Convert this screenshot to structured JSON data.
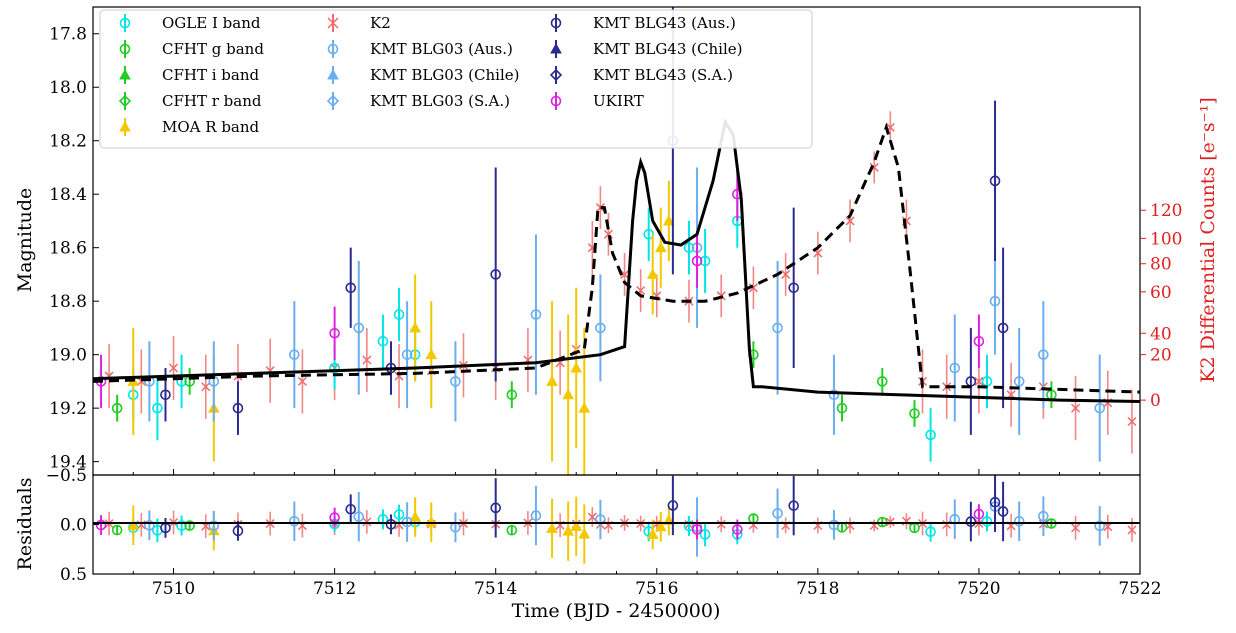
{
  "chart_data": {
    "type": "scatter",
    "xlabel": "Time (BJD - 2450000)",
    "ylabel": "Magnitude",
    "ylabel_residuals": "Residuals",
    "ylabel_right": "K2 Differential Counts [e⁻s⁻¹]",
    "xlim": [
      7509.0,
      7522.0
    ],
    "ylim_main": [
      17.7,
      19.45
    ],
    "ylim_residuals": [
      -0.5,
      0.5
    ],
    "x_ticks": [
      7510,
      7512,
      7514,
      7516,
      7518,
      7520,
      7522
    ],
    "x_tick_labels": [
      "7510",
      "7512",
      "7514",
      "7516",
      "7518",
      "7520",
      "7522"
    ],
    "y_ticks_main": [
      17.8,
      18.0,
      18.2,
      18.4,
      18.6,
      18.8,
      19.0,
      19.2,
      19.4
    ],
    "y_tick_labels_main": [
      "17.8",
      "18.0",
      "18.2",
      "18.4",
      "18.6",
      "18.8",
      "19.0",
      "19.2",
      "19.4"
    ],
    "y_ticks_residuals": [
      -0.5,
      0.0,
      0.5
    ],
    "y_tick_labels_residuals": [
      "−0.5",
      "0.0",
      "0.5"
    ],
    "right_ticks": [
      0,
      20,
      40,
      60,
      80,
      100,
      120
    ],
    "right_tick_labels": [
      "0",
      "20",
      "40",
      "60",
      "80",
      "100",
      "120"
    ],
    "right_tick_mags": [
      19.17,
      19.0,
      18.92,
      18.765,
      18.66,
      18.565,
      18.46
    ],
    "legend_position": "top-left",
    "legend": [
      {
        "label": "OGLE I band",
        "color": "#00e5e5",
        "marker": "o"
      },
      {
        "label": "CFHT g band",
        "color": "#22cc22",
        "marker": "o"
      },
      {
        "label": "CFHT i band",
        "color": "#22cc22",
        "marker": "^"
      },
      {
        "label": "CFHT r band",
        "color": "#22cc22",
        "marker": "D"
      },
      {
        "label": "MOA R band",
        "color": "#f2c800",
        "marker": "^"
      },
      {
        "label": "K2",
        "color": "#f06a6a",
        "marker": "x"
      },
      {
        "label": "KMT BLG03 (Aus.)",
        "color": "#6aaef0",
        "marker": "o"
      },
      {
        "label": "KMT BLG03 (Chile)",
        "color": "#6aaef0",
        "marker": "^"
      },
      {
        "label": "KMT BLG03 (S.A.)",
        "color": "#6aaef0",
        "marker": "D"
      },
      {
        "label": "KMT BLG43 (Aus.)",
        "color": "#2a2a90",
        "marker": "o"
      },
      {
        "label": "KMT BLG43 (Chile)",
        "color": "#2a2a90",
        "marker": "^"
      },
      {
        "label": "KMT BLG43 (S.A.)",
        "color": "#2a2a90",
        "marker": "D"
      },
      {
        "label": "UKIRT",
        "color": "#e020e0",
        "marker": "o"
      }
    ],
    "models": [
      {
        "style": "solid",
        "color": "#000000",
        "x": [
          7509.0,
          7511.0,
          7513.0,
          7514.5,
          7515.3,
          7515.6,
          7515.7,
          7515.75,
          7515.8,
          7515.85,
          7515.95,
          7516.1,
          7516.3,
          7516.5,
          7516.7,
          7516.85,
          7516.95,
          7517.05,
          7517.15,
          7517.2,
          7517.3,
          7518.0,
          7519.0,
          7520.0,
          7521.0,
          7522.0
        ],
        "y": [
          19.09,
          19.07,
          19.05,
          19.03,
          19.0,
          18.97,
          18.5,
          18.35,
          18.28,
          18.32,
          18.5,
          18.58,
          18.59,
          18.55,
          18.35,
          18.13,
          18.18,
          18.42,
          18.98,
          19.12,
          19.12,
          19.14,
          19.15,
          19.16,
          19.17,
          19.175
        ]
      },
      {
        "style": "dashed",
        "color": "#000000",
        "x": [
          7509.0,
          7511.0,
          7513.0,
          7514.5,
          7515.1,
          7515.2,
          7515.27,
          7515.35,
          7515.45,
          7515.6,
          7515.8,
          7516.2,
          7516.6,
          7517.0,
          7517.5,
          7518.0,
          7518.4,
          7518.7,
          7518.85,
          7519.0,
          7519.15,
          7519.3,
          7520.0,
          7521.0,
          7522.0
        ],
        "y": [
          19.1,
          19.08,
          19.07,
          19.05,
          18.98,
          18.75,
          18.45,
          18.45,
          18.62,
          18.73,
          18.78,
          18.8,
          18.8,
          18.77,
          18.7,
          18.6,
          18.48,
          18.28,
          18.15,
          18.3,
          18.7,
          19.12,
          19.12,
          19.13,
          19.14
        ]
      }
    ],
    "series": [
      {
        "name": "K2",
        "color": "#f06a6a",
        "marker": "x",
        "x": [
          7509.2,
          7509.6,
          7510.0,
          7510.4,
          7510.8,
          7511.2,
          7511.6,
          7512.0,
          7512.4,
          7512.8,
          7513.2,
          7513.6,
          7514.0,
          7514.4,
          7514.8,
          7515.0,
          7515.2,
          7515.3,
          7515.4,
          7515.6,
          7515.8,
          7516.0,
          7516.4,
          7516.8,
          7517.2,
          7517.6,
          7518.0,
          7518.4,
          7518.7,
          7518.9,
          7519.1,
          7519.3,
          7519.6,
          7520.0,
          7520.4,
          7520.8,
          7521.2,
          7521.6,
          7521.9
        ],
        "y": [
          19.08,
          19.1,
          19.05,
          19.12,
          19.08,
          19.06,
          19.1,
          19.05,
          19.02,
          19.08,
          19.06,
          19.04,
          19.05,
          19.02,
          19.03,
          18.98,
          18.6,
          18.45,
          18.55,
          18.7,
          18.76,
          18.78,
          18.8,
          18.78,
          18.75,
          18.7,
          18.62,
          18.5,
          18.3,
          18.15,
          18.5,
          19.1,
          19.12,
          19.1,
          19.15,
          19.12,
          19.2,
          19.18,
          19.25
        ],
        "err": [
          0.12,
          0.12,
          0.12,
          0.12,
          0.12,
          0.12,
          0.12,
          0.12,
          0.12,
          0.12,
          0.12,
          0.12,
          0.12,
          0.12,
          0.12,
          0.12,
          0.1,
          0.08,
          0.08,
          0.08,
          0.08,
          0.08,
          0.08,
          0.08,
          0.08,
          0.08,
          0.08,
          0.08,
          0.06,
          0.06,
          0.08,
          0.12,
          0.12,
          0.12,
          0.12,
          0.12,
          0.12,
          0.12,
          0.12
        ]
      },
      {
        "name": "OGLE I band",
        "color": "#00e5e5",
        "marker": "o",
        "x": [
          7509.5,
          7509.8,
          7510.1,
          7512.0,
          7512.6,
          7512.8,
          7513.0,
          7515.9,
          7516.4,
          7516.6,
          7517.0,
          7519.4,
          7520.1
        ],
        "y": [
          19.15,
          19.2,
          19.1,
          19.05,
          18.95,
          18.85,
          19.0,
          18.55,
          18.6,
          18.65,
          18.5,
          19.3,
          19.1
        ],
        "err": [
          0.1,
          0.12,
          0.1,
          0.08,
          0.1,
          0.1,
          0.1,
          0.1,
          0.1,
          0.12,
          0.1,
          0.1,
          0.1
        ]
      },
      {
        "name": "CFHT g band",
        "color": "#22cc22",
        "marker": "o",
        "x": [
          7509.3,
          7510.2,
          7514.2,
          7517.2,
          7518.3,
          7518.8,
          7519.2,
          7520.9
        ],
        "y": [
          19.2,
          19.1,
          19.15,
          19.0,
          19.2,
          19.1,
          19.22,
          19.15
        ],
        "err": [
          0.05,
          0.05,
          0.05,
          0.05,
          0.05,
          0.05,
          0.05,
          0.05
        ]
      },
      {
        "name": "MOA R band",
        "color": "#f2c800",
        "marker": "^",
        "x": [
          7509.5,
          7510.5,
          7513.0,
          7513.2,
          7514.7,
          7514.9,
          7515.0,
          7515.1,
          7515.95,
          7516.05,
          7516.15
        ],
        "y": [
          19.1,
          19.2,
          18.9,
          19.0,
          19.1,
          19.15,
          19.05,
          19.2,
          18.7,
          18.6,
          18.5
        ],
        "err": [
          0.2,
          0.2,
          0.2,
          0.2,
          0.3,
          0.3,
          0.3,
          0.3,
          0.15,
          0.15,
          0.15
        ]
      },
      {
        "name": "KMT BLG03 (Aus.)",
        "color": "#6aaef0",
        "marker": "o",
        "x": [
          7509.7,
          7510.5,
          7511.5,
          7512.3,
          7512.9,
          7513.5,
          7514.5,
          7515.3,
          7516.5,
          7517.5,
          7518.2,
          7519.7,
          7520.2,
          7520.5,
          7520.8,
          7521.5
        ],
        "y": [
          19.1,
          19.1,
          19.0,
          18.9,
          19.0,
          19.1,
          18.85,
          18.9,
          18.6,
          18.9,
          19.15,
          19.05,
          18.8,
          19.1,
          19.0,
          19.2
        ],
        "err": [
          0.15,
          0.15,
          0.2,
          0.25,
          0.2,
          0.15,
          0.3,
          0.2,
          0.3,
          0.25,
          0.15,
          0.2,
          0.2,
          0.2,
          0.2,
          0.2
        ]
      },
      {
        "name": "KMT BLG43 (Aus.)",
        "color": "#2a2a90",
        "marker": "o",
        "x": [
          7509.9,
          7510.8,
          7512.2,
          7512.7,
          7514.0,
          7516.2,
          7517.7,
          7519.9,
          7520.2,
          7520.3
        ],
        "y": [
          19.15,
          19.2,
          18.75,
          19.05,
          18.7,
          18.2,
          18.75,
          19.1,
          18.35,
          18.9
        ],
        "err": [
          0.1,
          0.1,
          0.15,
          0.1,
          0.4,
          0.5,
          0.3,
          0.2,
          0.3,
          0.3
        ]
      },
      {
        "name": "UKIRT",
        "color": "#e020e0",
        "marker": "o",
        "x": [
          7509.1,
          7512.0,
          7516.5,
          7517.0,
          7520.0
        ],
        "y": [
          19.1,
          18.92,
          18.65,
          18.4,
          18.95
        ],
        "err": [
          0.1,
          0.1,
          0.1,
          0.1,
          0.1
        ]
      }
    ]
  }
}
